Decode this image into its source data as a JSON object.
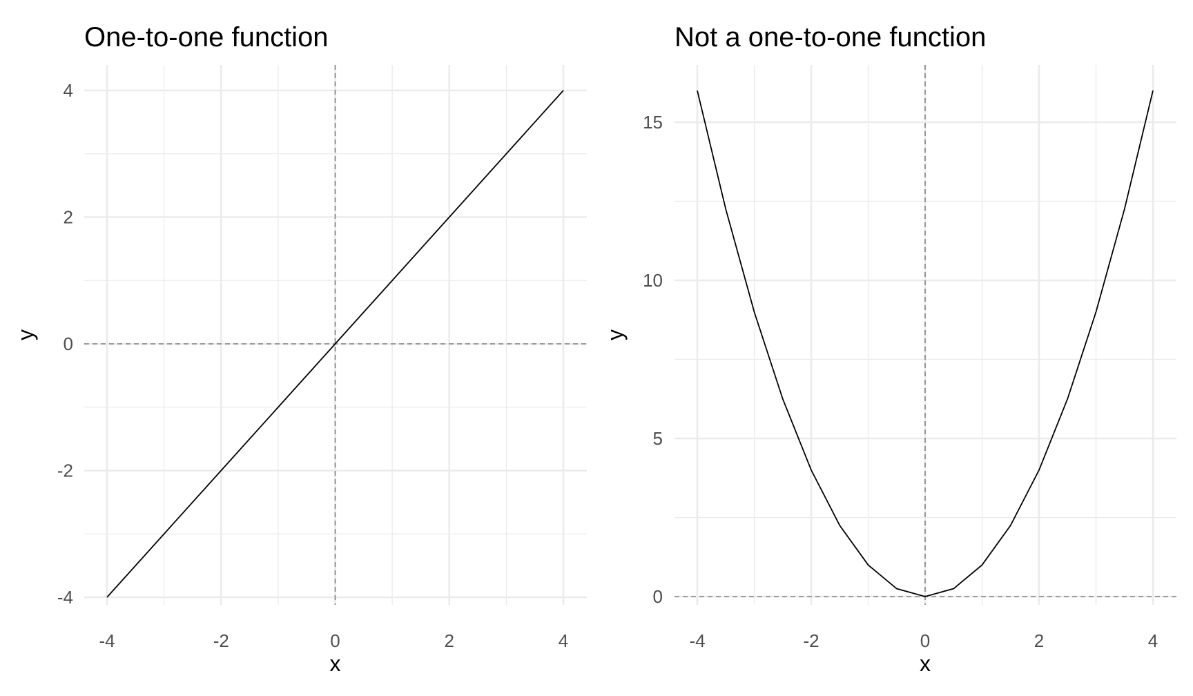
{
  "chart_data": [
    {
      "type": "line",
      "title": "One-to-one function",
      "xlabel": "x",
      "ylabel": "y",
      "xlim": [
        -4,
        4
      ],
      "ylim": [
        -4,
        4
      ],
      "x_ticks": [
        -4,
        -2,
        0,
        2,
        4
      ],
      "y_ticks": [
        -4,
        -2,
        0,
        2,
        4
      ],
      "x_tick_labels": [
        "-4",
        "-2",
        "0",
        "2",
        "4"
      ],
      "y_tick_labels": [
        "-4",
        "-2",
        "0",
        "2",
        "4"
      ],
      "grid": true,
      "reference_lines": {
        "x": 0,
        "y": 0,
        "style": "dashed"
      },
      "series": [
        {
          "x": [
            -4,
            -3,
            -2,
            -1,
            0,
            1,
            2,
            3,
            4
          ],
          "y": [
            -4,
            -3,
            -2,
            -1,
            0,
            1,
            2,
            3,
            4
          ]
        }
      ]
    },
    {
      "type": "line",
      "title": "Not a one-to-one function",
      "xlabel": "x",
      "ylabel": "y",
      "xlim": [
        -4,
        4
      ],
      "ylim": [
        0,
        16
      ],
      "x_ticks": [
        -4,
        -2,
        0,
        2,
        4
      ],
      "y_ticks": [
        0,
        5,
        10,
        15
      ],
      "x_tick_labels": [
        "-4",
        "-2",
        "0",
        "2",
        "4"
      ],
      "y_tick_labels": [
        "0",
        "5",
        "10",
        "15"
      ],
      "grid": true,
      "reference_lines": {
        "x": 0,
        "y": 0,
        "style": "dashed"
      },
      "series": [
        {
          "x": [
            -4,
            -3.5,
            -3,
            -2.5,
            -2,
            -1.5,
            -1,
            -0.5,
            0,
            0.5,
            1,
            1.5,
            2,
            2.5,
            3,
            3.5,
            4
          ],
          "y": [
            16,
            12.25,
            9,
            6.25,
            4,
            2.25,
            1,
            0.25,
            0,
            0.25,
            1,
            2.25,
            4,
            6.25,
            9,
            12.25,
            16
          ]
        }
      ]
    }
  ]
}
